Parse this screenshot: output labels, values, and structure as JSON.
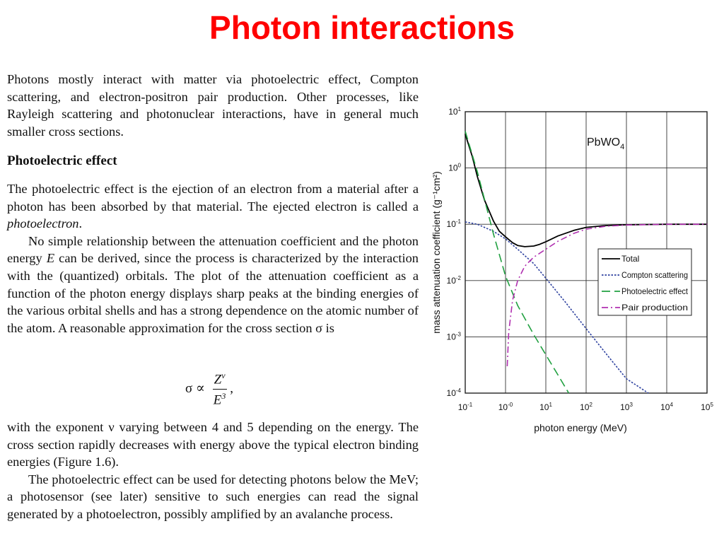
{
  "slide": {
    "title": "Photon interactions"
  },
  "text": {
    "intro": "Photons mostly interact with matter via photoelectric effect, Compton scattering, and electron-positron pair production. Other processes, like Rayleigh scattering and photonuclear interactions, have in general much smaller cross sections.",
    "heading": "Photoelectric effect",
    "p1_a": "The photoelectric effect is the ejection of an electron from a material after a photon has been absorbed by that material. The ejected electron is called a ",
    "p1_em": "photoelectron",
    "p1_b": ".",
    "p2_a": "No simple relationship between the attenuation coefficient and the photon energy ",
    "p2_em": "E",
    "p2_b": " can be derived, since the process is characterized by the interaction with the (quantized) orbitals. The plot of the attenuation coefficient as a function of the photon energy displays sharp peaks at the binding energies of the various orbital shells and has a strong dependence on the atomic number of the atom. A reasonable approximation for the cross section σ is",
    "formula_lhs": "σ ∝",
    "formula_num": "Zν",
    "formula_den": "E3",
    "formula_tail": ",",
    "p3": "with the exponent ν varying between 4 and 5 depending on the energy. The cross section rapidly decreases with energy above the typical electron binding energies (Figure 1.6).",
    "p4": "The photoelectric effect can be used for detecting photons below the MeV; a photosensor (see later) sensitive to such energies can read the signal generated by a photoelectron, possibly amplified by an avalanche process."
  },
  "chart_data": {
    "type": "line",
    "title": "",
    "annotation": "PbWO4",
    "annotation_main": "PbWO",
    "annotation_sub": "4",
    "xlabel": "photon energy (MeV)",
    "ylabel": "mass attenuation coefficient (g⁻¹cm²)",
    "xscale": "log",
    "yscale": "log",
    "xlim": [
      0.1,
      100000
    ],
    "ylim": [
      0.0001,
      10
    ],
    "grid": true,
    "legend_position": "right-middle",
    "x_ticks": [
      {
        "base": "10",
        "exp": "-1"
      },
      {
        "base": "10",
        "exp": "-0"
      },
      {
        "base": "10",
        "exp": "1"
      },
      {
        "base": "10",
        "exp": "2"
      },
      {
        "base": "10",
        "exp": "3"
      },
      {
        "base": "10",
        "exp": "4"
      },
      {
        "base": "10",
        "exp": "5"
      }
    ],
    "y_ticks": [
      {
        "base": "10",
        "exp": "1"
      },
      {
        "base": "10",
        "exp": "0"
      },
      {
        "base": "10",
        "exp": "-1"
      },
      {
        "base": "10",
        "exp": "-2"
      },
      {
        "base": "10",
        "exp": "-3"
      },
      {
        "base": "10",
        "exp": "-4"
      }
    ],
    "series": [
      {
        "name": "Total",
        "color": "#000000",
        "style": "solid",
        "x": [
          0.1,
          0.15,
          0.2,
          0.3,
          0.5,
          0.7,
          1,
          1.5,
          2,
          3,
          5,
          7,
          10,
          20,
          50,
          100,
          300,
          1000,
          10000,
          100000
        ],
        "y": [
          4.0,
          1.6,
          0.7,
          0.27,
          0.115,
          0.075,
          0.06,
          0.047,
          0.042,
          0.04,
          0.041,
          0.044,
          0.049,
          0.062,
          0.078,
          0.088,
          0.095,
          0.098,
          0.1,
          0.1
        ]
      },
      {
        "name": "Compton scattering",
        "color": "#2b3f9e",
        "style": "dotted",
        "x": [
          0.1,
          0.2,
          0.5,
          1,
          2,
          5,
          10,
          30,
          100,
          300,
          1000,
          3500
        ],
        "y": [
          0.11,
          0.1,
          0.075,
          0.055,
          0.036,
          0.02,
          0.011,
          0.0042,
          0.0014,
          0.00052,
          0.00018,
          0.0001
        ]
      },
      {
        "name": "Photoelectric effect",
        "color": "#20a040",
        "style": "dashed",
        "x": [
          0.1,
          0.2,
          0.5,
          1,
          2,
          5,
          10,
          20,
          37
        ],
        "y": [
          4.5,
          0.85,
          0.068,
          0.012,
          0.0036,
          0.0011,
          0.00048,
          0.00021,
          0.0001
        ]
      },
      {
        "name": "Pair production",
        "color": "#b030b0",
        "style": "dashdot",
        "x": [
          1.1,
          1.2,
          1.5,
          2,
          3,
          5,
          10,
          20,
          50,
          100,
          300,
          1000,
          10000,
          100000
        ],
        "y": [
          0.0003,
          0.0012,
          0.0045,
          0.01,
          0.018,
          0.026,
          0.036,
          0.05,
          0.069,
          0.082,
          0.092,
          0.097,
          0.1,
          0.1
        ]
      }
    ]
  }
}
